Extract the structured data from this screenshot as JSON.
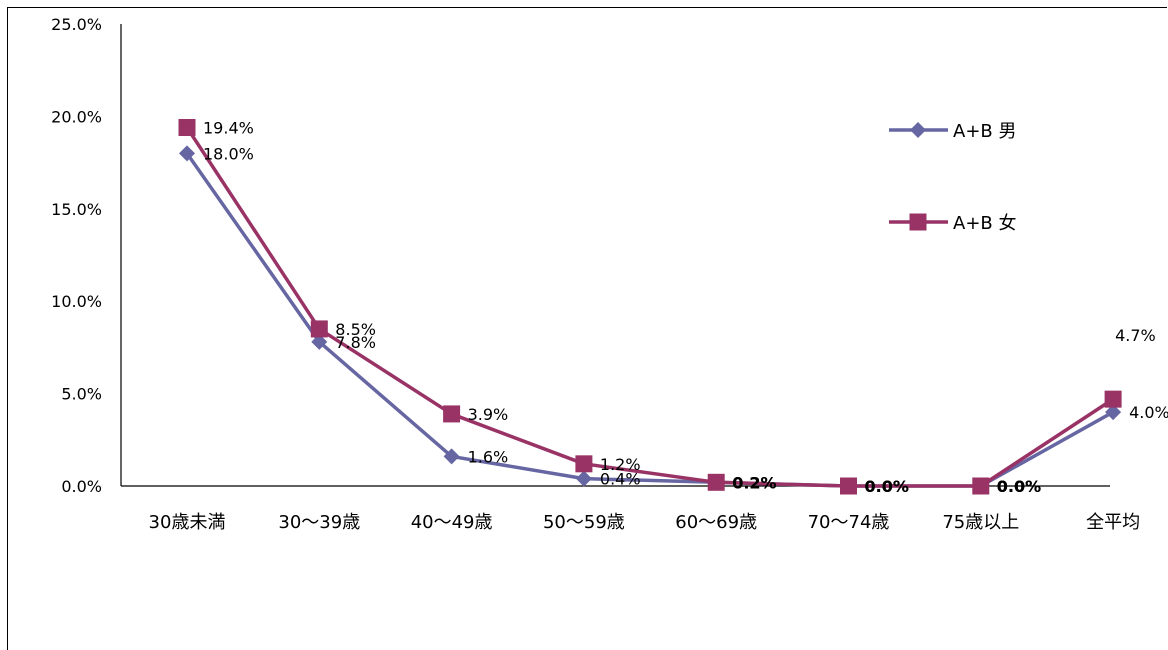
{
  "chart_data": {
    "type": "line",
    "categories": [
      "30歳未満",
      "30～39歳",
      "40～49歳",
      "50～59歳",
      "60～69歳",
      "70～74歳",
      "75歳以上",
      "全平均"
    ],
    "series": [
      {
        "name": "A+B 男",
        "values": [
          18.0,
          7.8,
          1.6,
          0.4,
          0.2,
          0.0,
          0.0,
          4.0
        ],
        "labels": [
          "18.0%",
          "7.8%",
          "1.6%",
          "0.4%",
          "0.2%",
          "0.0%",
          "0.0%",
          "4.0%"
        ],
        "color": "#6666a3",
        "marker": "diamond"
      },
      {
        "name": "A+B 女",
        "values": [
          19.4,
          8.5,
          3.9,
          1.2,
          0.2,
          0.0,
          0.0,
          4.7
        ],
        "labels": [
          "19.4%",
          "8.5%",
          "3.9%",
          "1.2%",
          "0.2%",
          "0.0%",
          "0.0%",
          "4.7%"
        ],
        "color": "#993366",
        "marker": "square"
      }
    ],
    "ylim": [
      0,
      25
    ],
    "yticks": [
      "0.0%",
      "5.0%",
      "10.0%",
      "15.0%",
      "20.0%",
      "25.0%"
    ],
    "ytick_values": [
      0,
      5,
      10,
      15,
      20,
      25
    ],
    "grid": false,
    "legend_position": "top-right",
    "title": "",
    "xlabel": "",
    "ylabel": ""
  }
}
